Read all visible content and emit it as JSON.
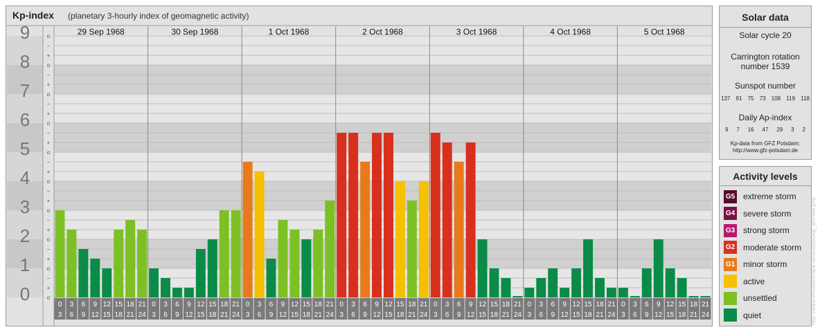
{
  "header": {
    "title": "Kp-index",
    "subtitle": "(planetary 3-hourly index of geomagnetic activity)"
  },
  "chart_data": {
    "type": "bar",
    "title": "Kp-index",
    "subtitle": "(planetary 3-hourly index of geomagnetic activity)",
    "ylim": [
      0,
      9
    ],
    "y_ticks": [
      "0",
      "1",
      "2",
      "3",
      "4",
      "5",
      "6",
      "7",
      "8",
      "9"
    ],
    "minor_tick_labels": [
      "o",
      "+",
      "−"
    ],
    "interval_labels_top": [
      "0",
      "3",
      "6",
      "9",
      "12",
      "15",
      "18",
      "21"
    ],
    "interval_labels_bottom": [
      "3",
      "6",
      "9",
      "12",
      "15",
      "18",
      "21",
      "24"
    ],
    "days": [
      {
        "date": "29 Sep 1968",
        "values": [
          3.0,
          2.333,
          1.667,
          1.333,
          1.0,
          2.333,
          2.667,
          2.333
        ]
      },
      {
        "date": "30 Sep 1968",
        "values": [
          1.0,
          0.667,
          0.333,
          0.333,
          1.667,
          2.0,
          3.0,
          3.0
        ]
      },
      {
        "date": "1 Oct 1968",
        "values": [
          4.667,
          4.333,
          1.333,
          2.667,
          2.333,
          2.0,
          2.333,
          3.333
        ]
      },
      {
        "date": "2 Oct 1968",
        "values": [
          5.667,
          5.667,
          4.667,
          5.667,
          5.667,
          4.0,
          3.333,
          4.0
        ]
      },
      {
        "date": "3 Oct 1968",
        "values": [
          5.667,
          5.333,
          4.667,
          5.333,
          2.0,
          1.0,
          0.667,
          0.0
        ]
      },
      {
        "date": "4 Oct 1968",
        "values": [
          0.333,
          0.667,
          1.0,
          0.333,
          1.0,
          2.0,
          0.667,
          0.333
        ]
      },
      {
        "date": "5 Oct 1968",
        "values": [
          0.333,
          0.0,
          1.0,
          2.0,
          1.0,
          0.667,
          0.0,
          0.0
        ]
      }
    ],
    "color_scale": [
      {
        "max": 2.0,
        "level": "quiet"
      },
      {
        "max": 3.5,
        "level": "unsettled"
      },
      {
        "max": 4.5,
        "level": "active"
      },
      {
        "max": 5.0,
        "level": "minor storm"
      },
      {
        "max": 6.0,
        "level": "moderate storm"
      }
    ],
    "grid": true
  },
  "solar": {
    "title": "Solar data",
    "cycle": "Solar cycle 20",
    "carrington_line1": "Carrington rotation",
    "carrington_line2": "number 1539",
    "sunspot_title": "Sunspot number",
    "sunspot_numbers": [
      "137",
      "91",
      "75",
      "73",
      "108",
      "119",
      "118"
    ],
    "ap_title": "Daily Ap-index",
    "ap_values": [
      "9",
      "7",
      "16",
      "47",
      "29",
      "3",
      "2"
    ],
    "source_line1": "Kp-data from GFZ Potsdam:",
    "source_line2": "http://www.gfz-potsdam.de"
  },
  "levels": {
    "title": "Activity levels",
    "items": [
      {
        "badge": "G5",
        "label": "extreme storm",
        "color": "#5a0a2e"
      },
      {
        "badge": "G4",
        "label": "severe storm",
        "color": "#7a1048"
      },
      {
        "badge": "G3",
        "label": "strong storm",
        "color": "#b51a6e"
      },
      {
        "badge": "G2",
        "label": "moderate storm",
        "color": "#d8301c"
      },
      {
        "badge": "G1",
        "label": "minor storm",
        "color": "#e87a1c"
      },
      {
        "badge": "",
        "label": "active",
        "color": "#f5c000"
      },
      {
        "badge": "",
        "label": "unsettled",
        "color": "#7cc024"
      },
      {
        "badge": "",
        "label": "quiet",
        "color": "#0a8c48"
      }
    ]
  },
  "colors": {
    "quiet": "#0a8c48",
    "unsettled": "#7cc024",
    "active": "#f5c000",
    "minor storm": "#e87a1c",
    "moderate storm": "#d8301c"
  },
  "watermark": "http://www.theusersfrank.de/solarpic/kp_archive.php"
}
